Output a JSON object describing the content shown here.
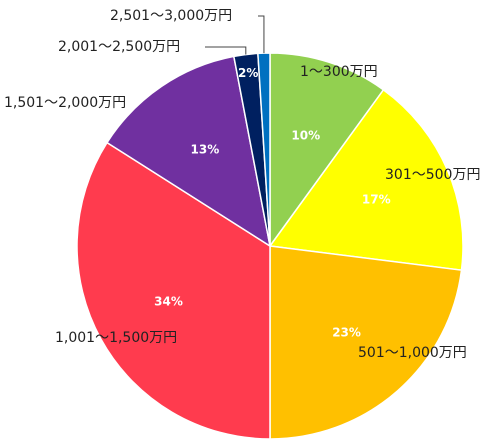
{
  "chart_data": {
    "type": "pie",
    "categories": [
      "1～300万円",
      "301～500万円",
      "501～1,000万円",
      "1,001～1,500万円",
      "1,501～2,000万円",
      "2,001～2,500万円",
      "2,501～3,000万円"
    ],
    "values": [
      10,
      17,
      23,
      34,
      13,
      2,
      1
    ],
    "value_labels": [
      "10%",
      "17%",
      "23%",
      "34%",
      "13%",
      "2%",
      null
    ],
    "colors": [
      "#92d050",
      "#ffff00",
      "#ffc000",
      "#ff3b4e",
      "#7030a0",
      "#002060",
      "#0070c0"
    ]
  }
}
